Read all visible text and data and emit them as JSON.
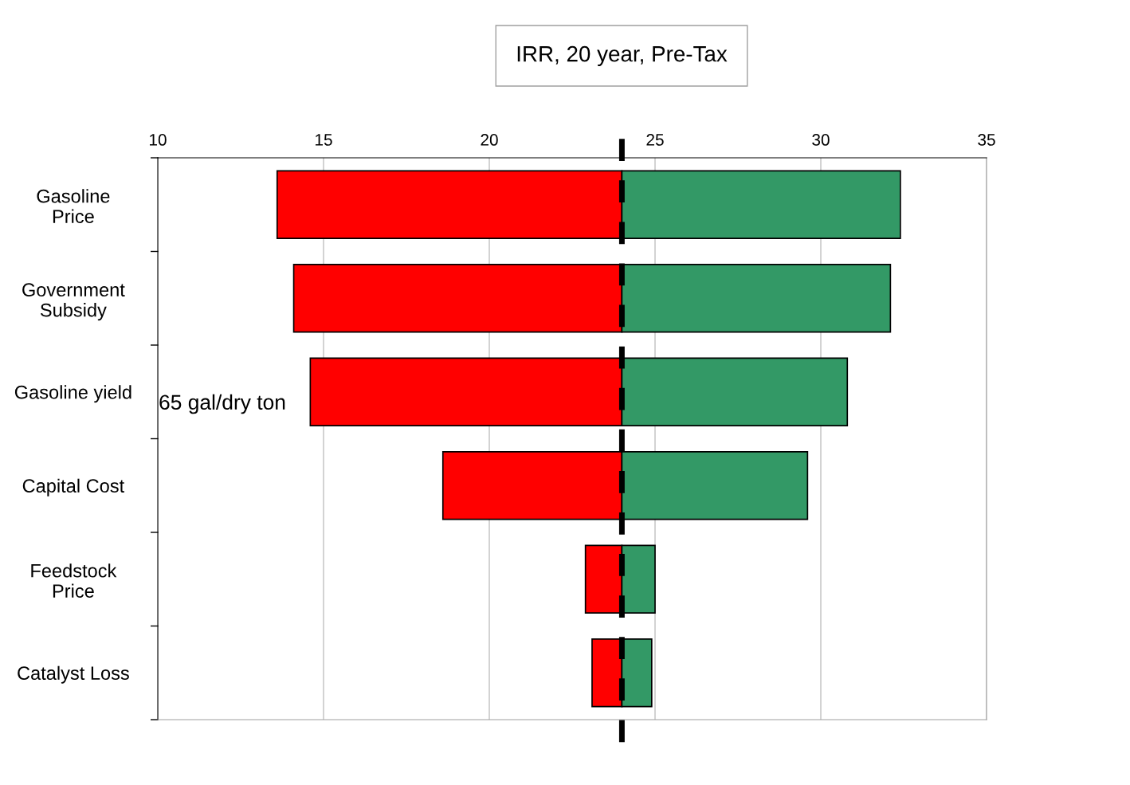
{
  "chart_data": {
    "type": "bar",
    "orientation": "horizontal",
    "title": "IRR, 20 year, Pre-Tax",
    "categories": [
      "Gasoline\nPrice",
      "Government\nSubsidy",
      "Gasoline yield",
      "Capital Cost",
      "Feedstock\nPrice",
      "Catalyst Loss"
    ],
    "series": [
      {
        "color": "#ff0000",
        "base": [
          13.6,
          14.1,
          14.6,
          18.6,
          22.9,
          23.1
        ],
        "values": [
          10.4,
          9.9,
          9.4,
          5.4,
          1.1,
          0.9
        ]
      },
      {
        "color": "#339966",
        "base": [
          24,
          24,
          24,
          24,
          24,
          24
        ],
        "values": [
          8.4,
          8.1,
          6.8,
          5.6,
          1.0,
          0.9
        ]
      }
    ],
    "xlim": [
      10,
      35
    ],
    "xticks": [
      10,
      15,
      20,
      25,
      30,
      35
    ],
    "grid": "x",
    "ref_lines": [
      {
        "axis": "x",
        "value": 24,
        "color": "#000000",
        "line_style": "dashed"
      }
    ],
    "annotations": [
      "65 gal/dry ton"
    ]
  }
}
